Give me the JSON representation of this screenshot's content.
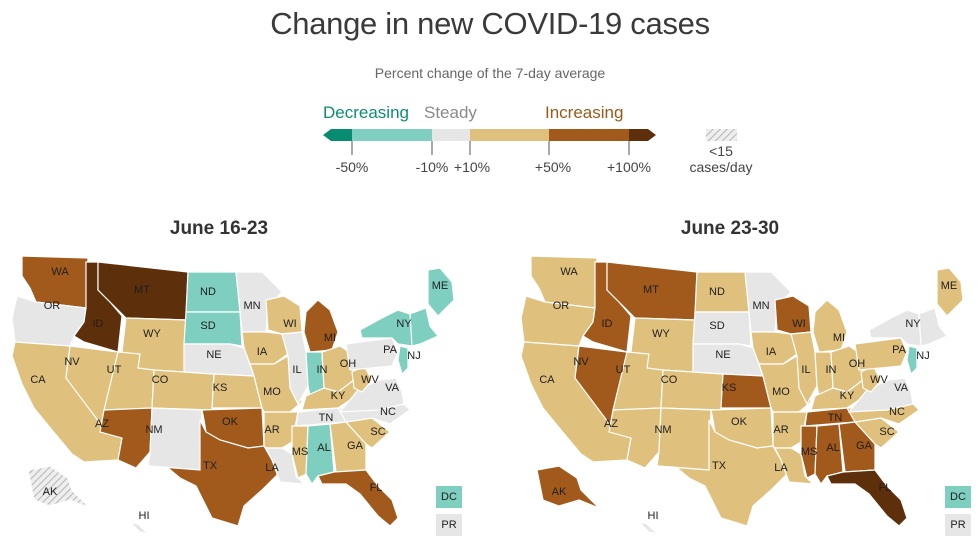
{
  "title": "Change in new COVID-19 cases",
  "subtitle": "Percent change of the 7-day average",
  "legend": {
    "words": {
      "decreasing": "Decreasing",
      "steady": "Steady",
      "increasing": "Increasing"
    },
    "ticks": [
      "-50%",
      "-10%",
      "+10%",
      "+50%",
      "+100%"
    ],
    "small_cases_line1": "<15",
    "small_cases_line2": "cases/day",
    "colors": {
      "dec_strong": "#078c70",
      "dec": "#7ecfc0",
      "steady": "#e6e6e6",
      "inc": "#e0c07d",
      "inc_more": "#a25a1c",
      "inc_strong": "#5e2f0b"
    }
  },
  "maps": [
    {
      "title": "June 16-23",
      "states": {
        "WA": "inc_more",
        "OR": "steady",
        "CA": "inc",
        "NV": "inc",
        "ID": "inc_strong",
        "MT": "inc_strong",
        "WY": "inc",
        "UT": "inc",
        "CO": "inc",
        "AZ": "inc_more",
        "NM": "steady",
        "ND": "dec",
        "SD": "dec",
        "NE": "steady",
        "KS": "inc",
        "OK": "inc_more",
        "TX": "inc_more",
        "MN": "steady",
        "IA": "inc",
        "MO": "inc",
        "AR": "inc",
        "LA": "steady",
        "WI": "inc",
        "IL": "steady",
        "MI": "inc_more",
        "IN": "dec",
        "OH": "inc",
        "KY": "inc",
        "TN": "steady",
        "MS": "inc",
        "AL": "dec",
        "GA": "inc",
        "FL": "inc_more",
        "SC": "inc",
        "NC": "steady",
        "VA": "steady",
        "WV": "inc",
        "PA": "steady",
        "NY": "dec",
        "NJ": "dec",
        "ME": "dec",
        "AK": "small",
        "HI": "steady",
        "DC": "dec",
        "PR": "steady"
      }
    },
    {
      "title": "June 23-30",
      "states": {
        "WA": "inc",
        "OR": "inc",
        "CA": "inc",
        "NV": "inc_more",
        "ID": "inc_more",
        "MT": "inc_more",
        "WY": "inc",
        "UT": "inc",
        "CO": "inc",
        "AZ": "inc",
        "NM": "inc",
        "ND": "inc",
        "SD": "steady",
        "NE": "steady",
        "KS": "inc_more",
        "OK": "inc",
        "TX": "inc",
        "MN": "steady",
        "IA": "inc",
        "MO": "inc",
        "AR": "inc",
        "LA": "inc",
        "WI": "inc_more",
        "IL": "inc",
        "MI": "inc",
        "IN": "inc",
        "OH": "inc",
        "KY": "inc",
        "TN": "inc_more",
        "MS": "inc_more",
        "AL": "inc_more",
        "GA": "inc_more",
        "FL": "inc_strong",
        "SC": "inc",
        "NC": "inc",
        "VA": "steady",
        "WV": "inc",
        "PA": "inc",
        "NY": "steady",
        "NJ": "dec",
        "ME": "inc",
        "AK": "inc_more",
        "HI": "steady",
        "DC": "dec",
        "PR": "steady"
      }
    }
  ]
}
